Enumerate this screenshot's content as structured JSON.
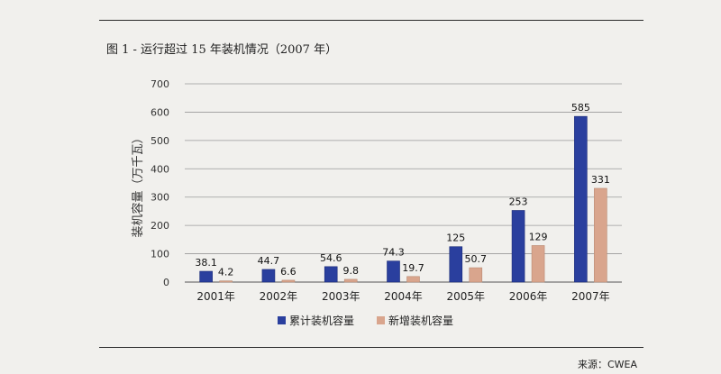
{
  "figure": {
    "title": "图 1 - 运行超过 15 年装机情况（2007 年）",
    "source": "来源：CWEA"
  },
  "chart_data": {
    "type": "bar",
    "categories": [
      "2001年",
      "2002年",
      "2003年",
      "2004年",
      "2005年",
      "2006年",
      "2007年"
    ],
    "series": [
      {
        "name": "累计装机容量",
        "values": [
          38.1,
          44.7,
          54.6,
          74.3,
          125,
          253,
          585
        ],
        "labels": [
          "38.1",
          "44.7",
          "54.6",
          "74.3",
          "125",
          "253",
          "585"
        ],
        "color": "#2a3f9e"
      },
      {
        "name": "新增装机容量",
        "values": [
          4.2,
          6.6,
          9.8,
          19.7,
          50.7,
          129,
          331
        ],
        "labels": [
          "4.2",
          "6.6",
          "9.8",
          "19.7",
          "50.7",
          "129",
          "331"
        ],
        "color": "#d9a58d"
      }
    ],
    "ylabel": "装机容量（万千瓦）",
    "ylim": [
      0,
      700
    ],
    "yticks": [
      "0",
      "100",
      "200",
      "300",
      "400",
      "500",
      "600",
      "700"
    ],
    "grid": true,
    "legend": "bottom"
  }
}
